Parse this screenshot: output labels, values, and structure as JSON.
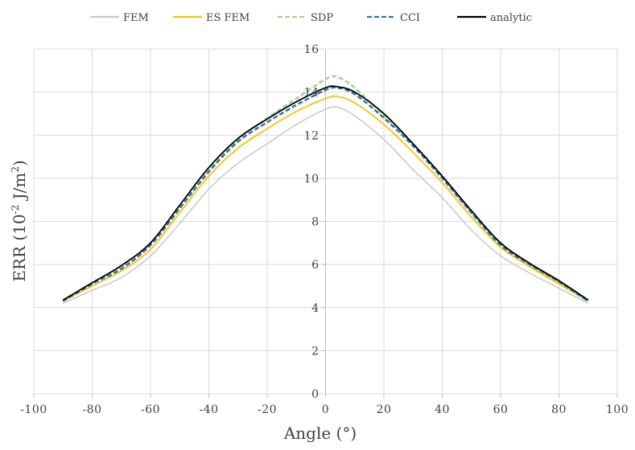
{
  "chart_data": {
    "type": "line",
    "xlabel": "Angle (°)",
    "ylabel_parts": {
      "main": "ERR (10",
      "sup1": "-2",
      "mid": " J/m",
      "sup2": "2",
      "end": ")"
    },
    "xlim": [
      -100,
      100
    ],
    "ylim": [
      0,
      16
    ],
    "xticks": [
      -100,
      -80,
      -60,
      -40,
      -20,
      0,
      20,
      40,
      60,
      80,
      100
    ],
    "yticks": [
      0,
      2,
      4,
      6,
      8,
      10,
      12,
      14,
      16
    ],
    "grid": true,
    "legend_position": "top",
    "x": [
      -90,
      -80,
      -70,
      -60,
      -50,
      -40,
      -30,
      -20,
      -10,
      0,
      4,
      10,
      20,
      30,
      40,
      50,
      60,
      70,
      80,
      90
    ],
    "series": [
      {
        "name": "FEM",
        "color": "#c8c8c8",
        "dash": "solid",
        "values": [
          4.2,
          4.8,
          5.4,
          6.4,
          7.9,
          9.5,
          10.7,
          11.6,
          12.5,
          13.2,
          13.3,
          12.9,
          11.8,
          10.4,
          9.1,
          7.6,
          6.4,
          5.6,
          4.9,
          4.2
        ]
      },
      {
        "name": "ES FEM",
        "color": "#ffc000",
        "dash": "solid",
        "values": [
          4.3,
          5.0,
          5.7,
          6.7,
          8.4,
          10.1,
          11.4,
          12.3,
          13.1,
          13.7,
          13.8,
          13.5,
          12.5,
          11.2,
          9.8,
          8.2,
          6.8,
          5.9,
          5.1,
          4.3
        ]
      },
      {
        "name": "SDP",
        "color": "#a9d18e",
        "dash": "dashed",
        "values": [
          4.3,
          5.1,
          5.9,
          6.9,
          8.6,
          10.4,
          11.8,
          12.8,
          13.7,
          14.6,
          14.7,
          14.2,
          12.9,
          11.6,
          10.1,
          8.4,
          7.0,
          6.0,
          5.2,
          4.3
        ]
      },
      {
        "name": "CCI",
        "color": "#2e75b6",
        "dash": "dashed",
        "values": [
          4.3,
          5.1,
          5.8,
          6.9,
          8.6,
          10.3,
          11.7,
          12.6,
          13.4,
          14.1,
          14.2,
          13.9,
          12.8,
          11.5,
          10.0,
          8.4,
          6.9,
          6.0,
          5.2,
          4.3
        ]
      },
      {
        "name": "analytic",
        "color": "#000000",
        "dash": "solid",
        "values": [
          4.35,
          5.15,
          5.95,
          7.0,
          8.75,
          10.5,
          11.85,
          12.75,
          13.55,
          14.2,
          14.25,
          14.0,
          13.0,
          11.6,
          10.1,
          8.5,
          7.0,
          6.05,
          5.25,
          4.35
        ]
      }
    ]
  }
}
